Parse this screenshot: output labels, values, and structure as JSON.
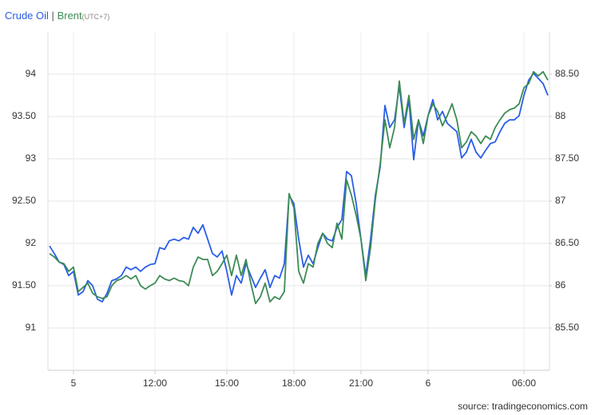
{
  "chart_data": {
    "type": "line",
    "legend_separator": "|",
    "timezone": "(UTC+7)",
    "source": "source: tradingeconomics.com",
    "grid": true,
    "categories": [
      null,
      null,
      null,
      null,
      null,
      "5",
      null,
      null,
      null,
      null,
      null,
      null,
      null,
      null,
      null,
      null,
      null,
      null,
      null,
      null,
      null,
      null,
      "12:00",
      null,
      null,
      null,
      null,
      null,
      null,
      null,
      null,
      null,
      null,
      null,
      null,
      null,
      null,
      "15:00",
      null,
      null,
      null,
      null,
      null,
      null,
      null,
      null,
      null,
      null,
      null,
      null,
      null,
      "18:00",
      null,
      null,
      null,
      null,
      null,
      null,
      null,
      null,
      null,
      null,
      null,
      null,
      null,
      "21:00",
      null,
      null,
      null,
      null,
      null,
      null,
      null,
      null,
      null,
      null,
      null,
      null,
      null,
      "6",
      null,
      null,
      null,
      null,
      null,
      null,
      null,
      null,
      null,
      null,
      null,
      null,
      null,
      null,
      null,
      null,
      null,
      null,
      null,
      "06:00",
      null,
      null,
      null,
      null,
      null
    ],
    "ylim": [
      90.5,
      94.5
    ],
    "yticks": [
      91,
      {
        "value": 91.5,
        "label": "91.50"
      },
      92,
      {
        "value": 92.5,
        "label": "92.50"
      },
      93,
      {
        "value": 93.5,
        "label": "93.50"
      },
      94
    ],
    "y2lim": [
      85,
      89
    ],
    "y2ticks": [
      {
        "value": 85.5,
        "label": "85.50"
      },
      86,
      {
        "value": 86.5,
        "label": "86.50"
      },
      87,
      {
        "value": 87.5,
        "label": "87.50"
      },
      88,
      {
        "value": 88.5,
        "label": "88.50"
      }
    ],
    "series": [
      {
        "name": "Crude Oil",
        "color": "#2a5ee8",
        "axis": "y",
        "values": [
          91.97,
          91.88,
          91.78,
          91.75,
          91.62,
          91.67,
          91.39,
          91.43,
          91.56,
          91.5,
          91.34,
          91.31,
          91.41,
          91.56,
          91.58,
          91.62,
          91.72,
          91.69,
          91.72,
          91.67,
          91.72,
          91.75,
          91.76,
          91.95,
          91.93,
          92.03,
          92.05,
          92.03,
          92.07,
          92.05,
          92.19,
          92.12,
          92.22,
          92.05,
          91.88,
          91.84,
          91.91,
          91.67,
          91.39,
          91.62,
          91.53,
          91.76,
          91.62,
          91.48,
          91.59,
          91.69,
          91.48,
          91.62,
          91.59,
          91.76,
          92.57,
          92.47,
          92.05,
          91.72,
          91.86,
          91.76,
          91.95,
          92.12,
          92.05,
          92.03,
          92.19,
          92.28,
          92.85,
          92.8,
          92.47,
          92.05,
          91.62,
          92.05,
          92.57,
          92.9,
          93.63,
          93.37,
          93.46,
          93.86,
          93.37,
          93.7,
          92.99,
          93.46,
          93.27,
          93.51,
          93.7,
          93.46,
          93.56,
          93.42,
          93.37,
          93.32,
          93.01,
          93.08,
          93.23,
          93.08,
          93.01,
          93.1,
          93.18,
          93.2,
          93.32,
          93.42,
          93.46,
          93.46,
          93.51,
          93.75,
          93.93,
          94.01,
          93.95,
          93.89,
          93.75
        ]
      },
      {
        "name": "Brent",
        "color": "#3d8b55",
        "axis": "y2",
        "values": [
          86.38,
          86.34,
          86.28,
          86.26,
          86.17,
          86.22,
          85.93,
          85.98,
          86.03,
          85.91,
          85.87,
          85.85,
          85.87,
          86.0,
          86.06,
          86.08,
          86.12,
          86.08,
          86.12,
          86.0,
          85.96,
          86.0,
          86.03,
          86.12,
          86.08,
          86.06,
          86.09,
          86.06,
          86.05,
          86.0,
          86.22,
          86.34,
          86.31,
          86.31,
          86.12,
          86.17,
          86.26,
          86.36,
          86.12,
          86.36,
          86.12,
          86.31,
          86.03,
          85.79,
          85.87,
          86.03,
          85.81,
          85.87,
          85.84,
          85.93,
          87.09,
          86.92,
          86.17,
          86.03,
          86.26,
          86.22,
          86.5,
          86.62,
          86.5,
          86.45,
          86.74,
          86.55,
          87.25,
          87.07,
          86.83,
          86.55,
          86.06,
          86.45,
          87.02,
          87.44,
          87.96,
          87.63,
          87.87,
          88.42,
          87.92,
          88.25,
          87.73,
          87.96,
          87.68,
          88.01,
          88.15,
          88.06,
          87.89,
          88.01,
          88.15,
          87.96,
          87.63,
          87.7,
          87.82,
          87.77,
          87.68,
          87.77,
          87.73,
          87.87,
          87.96,
          88.04,
          88.08,
          88.1,
          88.15,
          88.34,
          88.39,
          88.53,
          88.48,
          88.53,
          88.43
        ]
      }
    ]
  }
}
